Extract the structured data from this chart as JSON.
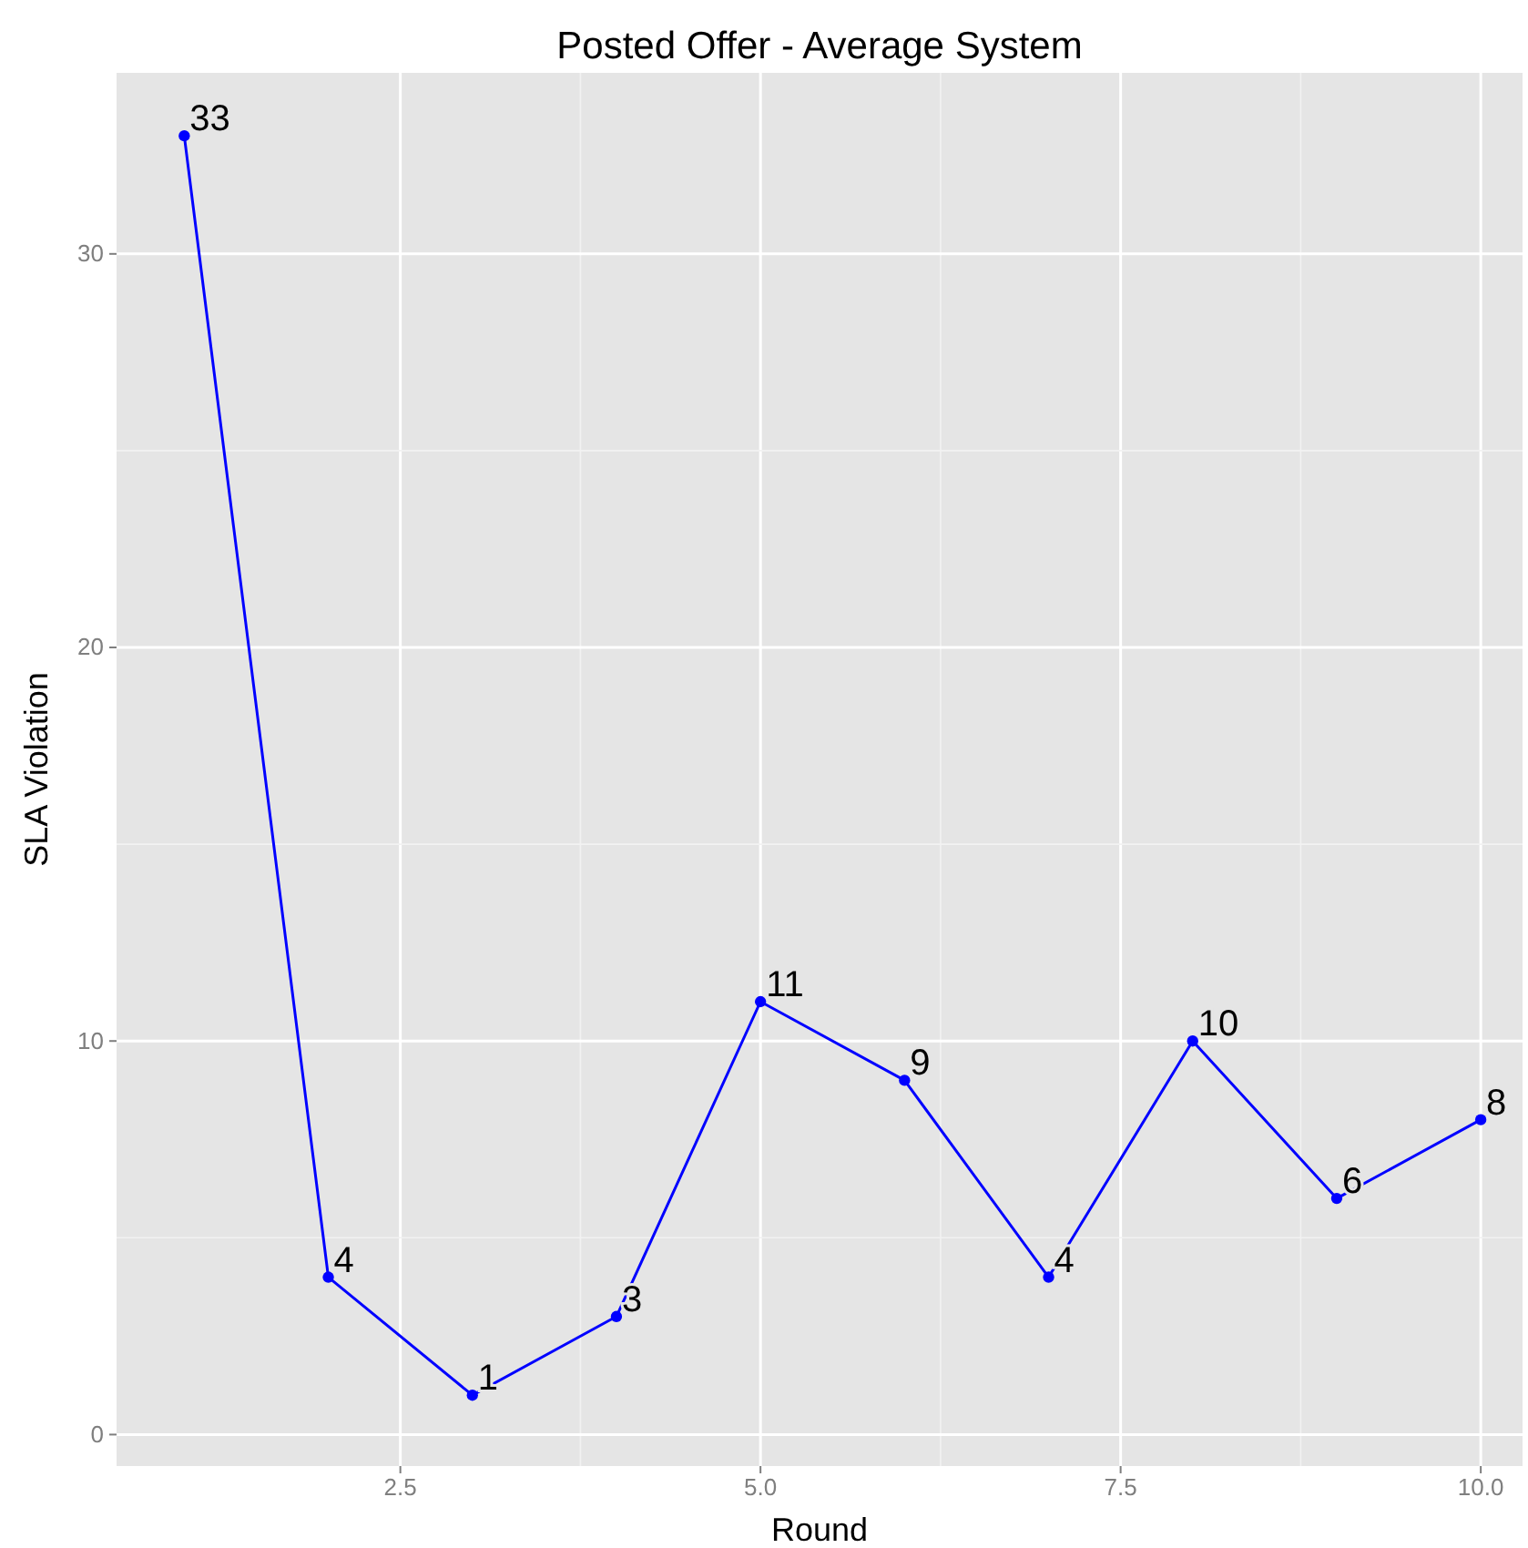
{
  "chart_data": {
    "type": "line",
    "title": "Posted Offer - Average System",
    "xlabel": "Round",
    "ylabel": "SLA Violation",
    "x": [
      1,
      2,
      3,
      4,
      5,
      6,
      7,
      8,
      9,
      10
    ],
    "series": [
      {
        "color": "#0000ff",
        "values": [
          33,
          4,
          1,
          3,
          11,
          9,
          4,
          10,
          6,
          8
        ]
      }
    ],
    "xlim": [
      0.53,
      10.29
    ],
    "xticks": [
      2.5,
      {
        "value": 5,
        "label": "5.0"
      },
      7.5,
      {
        "value": 10,
        "label": "10.0"
      }
    ],
    "ylim": [
      -0.8,
      34.6
    ],
    "yticks": [
      0,
      10,
      20,
      30
    ],
    "grid": true,
    "marker": "circle",
    "line_style": "solid",
    "data_labels": true
  }
}
